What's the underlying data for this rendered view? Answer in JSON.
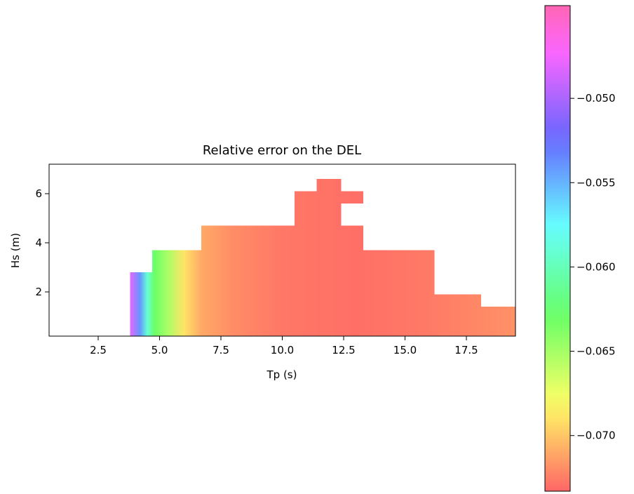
{
  "chart_data": {
    "type": "heatmap",
    "title": "Relative error on the DEL",
    "xlabel": "Tp (s)",
    "ylabel": "Hs (m)",
    "xlim": [
      0.5,
      19.5
    ],
    "ylim": [
      0.2,
      7.2
    ],
    "xticks": [
      2.5,
      5.0,
      7.5,
      10.0,
      12.5,
      15.0,
      17.5
    ],
    "xtick_labels": [
      "2.5",
      "5.0",
      "7.5",
      "10.0",
      "12.5",
      "15.0",
      "17.5"
    ],
    "yticks": [
      2,
      4,
      6
    ],
    "ytick_labels": [
      "2",
      "4",
      "6"
    ],
    "grid": false,
    "colormap": "gist_rainbow (alpha 0.6)",
    "colorbar": {
      "placement": "right",
      "range": [
        -0.0733,
        -0.0445
      ],
      "ticks": [
        -0.05,
        -0.055,
        -0.06,
        -0.065,
        -0.07
      ],
      "tick_labels": [
        "−0.050",
        "−0.055",
        "−0.060",
        "−0.065",
        "−0.070"
      ]
    },
    "coverage_columns": [
      {
        "tp_min": 3.8,
        "tp_max": 4.7,
        "hs_max": 2.8
      },
      {
        "tp_min": 4.7,
        "tp_max": 6.7,
        "hs_max": 3.7
      },
      {
        "tp_min": 6.7,
        "tp_max": 10.5,
        "hs_max": 4.7
      },
      {
        "tp_min": 10.5,
        "tp_max": 11.4,
        "hs_max": 6.1
      },
      {
        "tp_min": 11.4,
        "tp_max": 12.4,
        "hs_max": 6.6
      },
      {
        "tp_min": 12.4,
        "tp_max": 13.3,
        "hs_max": 4.7,
        "extra_range": [
          5.6,
          6.1
        ]
      },
      {
        "tp_min": 13.3,
        "tp_max": 16.2,
        "hs_max": 3.7
      },
      {
        "tp_min": 16.2,
        "tp_max": 18.1,
        "hs_max": 1.9
      },
      {
        "tp_min": 18.1,
        "tp_max": 19.5,
        "hs_max": 1.4
      }
    ],
    "value_profile_by_tp": [
      {
        "tp": 3.8,
        "value": -0.048
      },
      {
        "tp": 4.2,
        "value": -0.054
      },
      {
        "tp": 4.5,
        "value": -0.059
      },
      {
        "tp": 4.8,
        "value": -0.063
      },
      {
        "tp": 5.3,
        "value": -0.065
      },
      {
        "tp": 6.0,
        "value": -0.069
      },
      {
        "tp": 6.7,
        "value": -0.071
      },
      {
        "tp": 8.0,
        "value": -0.072
      },
      {
        "tp": 10.0,
        "value": -0.0727
      },
      {
        "tp": 13.0,
        "value": -0.073
      },
      {
        "tp": 16.0,
        "value": -0.0726
      },
      {
        "tp": 19.5,
        "value": -0.0718
      }
    ]
  },
  "colors": {
    "background": "#ffffff",
    "axes": "#000000"
  }
}
